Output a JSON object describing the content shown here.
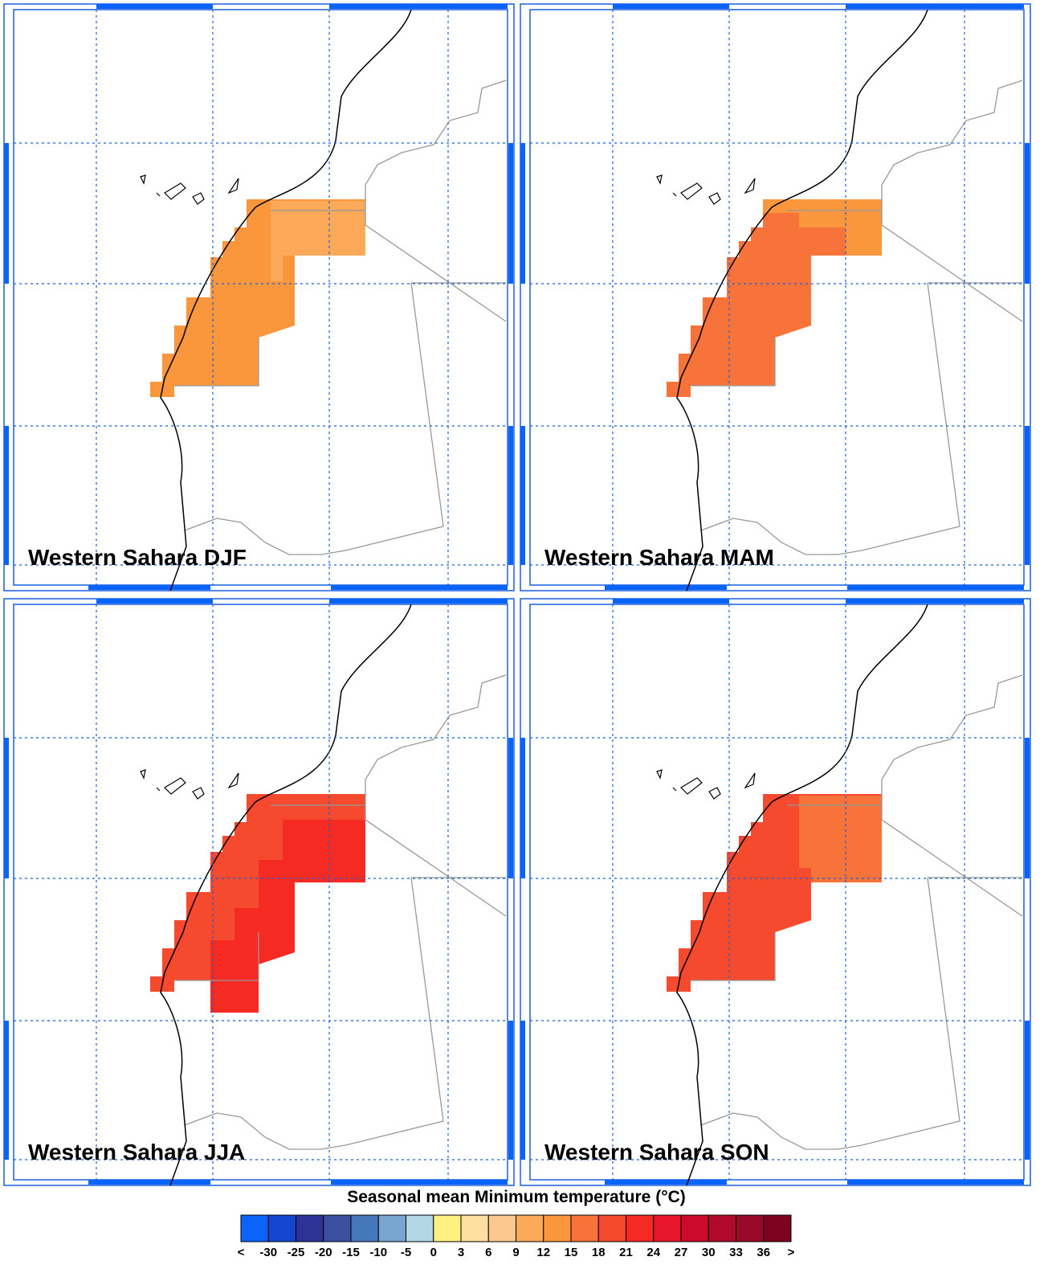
{
  "panels": [
    {
      "title": "Western Sahara DJF",
      "values": [
        13.5,
        10.5
      ]
    },
    {
      "title": "Western Sahara MAM",
      "values": [
        17,
        14
      ]
    },
    {
      "title": "Western Sahara JJA",
      "values": [
        20,
        22.5
      ]
    },
    {
      "title": "Western Sahara SON",
      "values": [
        19.5,
        17
      ]
    }
  ],
  "colorbar": {
    "title": "Seasonal mean Minimum temperature (°C)",
    "labels": [
      "<",
      -30,
      -25,
      -20,
      -15,
      -10,
      -5,
      0,
      3,
      6,
      9,
      12,
      15,
      18,
      21,
      24,
      27,
      30,
      33,
      36,
      ">"
    ],
    "colors": [
      "#0a64fa",
      "#1446d2",
      "#2d3296",
      "#3c50a0",
      "#4678b9",
      "#78a5d2",
      "#b4d7e6",
      "#fff082",
      "#fde0a0",
      "#fcc890",
      "#fcaa5a",
      "#fa963c",
      "#f8733a",
      "#f64a2e",
      "#f52a22",
      "#e8162a",
      "#cc0a2a",
      "#b00a2a",
      "#980a2a",
      "#7c0420"
    ]
  }
}
